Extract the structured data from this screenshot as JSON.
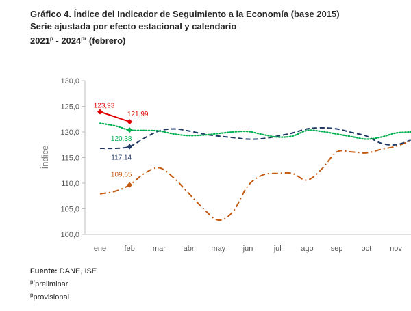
{
  "header": {
    "line1": "Gráfico 4. Índice del Indicador de Seguimiento a la Economía (base 2015)",
    "line2": "Serie ajustada por efecto estacional y calendario",
    "line3_a": "2021",
    "line3_a_sup": "p",
    "line3_b": " - 2024",
    "line3_b_sup": "pr",
    "line3_c": " (febrero)"
  },
  "footer": {
    "source_label": "Fuente:",
    "source_text": " DANE, ISE",
    "note1_sup": "pr",
    "note1_text": "preliminar",
    "note2_sup": "p",
    "note2_text": "provisional"
  },
  "chart_data": {
    "type": "line",
    "ylabel": "Índice",
    "xlabel": "",
    "ylim": [
      100,
      130
    ],
    "ytick_labels": [
      "100,0",
      "105,0",
      "110,0",
      "115,0",
      "120,0",
      "125,0",
      "130,0"
    ],
    "categories": [
      "ene",
      "feb",
      "mar",
      "abr",
      "may",
      "jun",
      "jul",
      "ago",
      "sep",
      "oct",
      "nov"
    ],
    "grid": false,
    "series": [
      {
        "style": "dash-dot",
        "color": "#C55A11",
        "x": [
          0,
          0.5,
          1,
          1.5,
          2,
          2.5,
          3,
          3.5,
          4,
          4.5,
          5,
          5.5,
          6,
          6.5,
          7,
          7.5,
          8,
          8.5,
          9,
          9.5,
          10,
          10.5
        ],
        "values": [
          107.9,
          108.4,
          109.65,
          111.9,
          113.0,
          111.0,
          108.0,
          105.0,
          102.8,
          104.5,
          109.5,
          111.6,
          111.9,
          111.9,
          110.6,
          112.8,
          116.1,
          116.1,
          115.9,
          116.6,
          117.2,
          118.3
        ],
        "marker_index": 2,
        "point_label": "109,65"
      },
      {
        "style": "dashed",
        "color": "#1F3864",
        "x": [
          0,
          0.5,
          1,
          1.5,
          2,
          2.5,
          3,
          3.5,
          4,
          4.5,
          5,
          5.5,
          6,
          6.5,
          7,
          7.5,
          8,
          8.5,
          9,
          9.5,
          10,
          10.5
        ],
        "values": [
          116.8,
          116.8,
          117.14,
          118.8,
          120.2,
          120.6,
          120.2,
          119.6,
          119.2,
          118.9,
          118.6,
          118.7,
          119.2,
          119.8,
          120.6,
          120.8,
          120.6,
          119.9,
          119.2,
          117.8,
          117.5,
          118.4
        ],
        "marker_index": 2,
        "point_label": "117,14"
      },
      {
        "style": "dotted",
        "color": "#00B050",
        "x": [
          0,
          0.5,
          1,
          1.5,
          2,
          2.5,
          3,
          3.5,
          4,
          4.5,
          5,
          5.5,
          6,
          6.5,
          7,
          7.5,
          8,
          8.5,
          9,
          9.5,
          10,
          10.5
        ],
        "values": [
          121.7,
          121.2,
          120.38,
          120.3,
          120.2,
          119.6,
          119.3,
          119.4,
          119.7,
          120.0,
          120.1,
          119.5,
          119.0,
          119.2,
          120.3,
          120.1,
          119.6,
          119.1,
          118.6,
          119.0,
          119.8,
          120.0
        ],
        "marker_index": 2,
        "point_label": "120,38"
      },
      {
        "style": "solid",
        "color": "#E00000",
        "x": [
          0,
          1
        ],
        "values": [
          123.93,
          121.99
        ],
        "marker_index": null,
        "point_labels": [
          "123,93",
          "121,99"
        ]
      }
    ]
  }
}
